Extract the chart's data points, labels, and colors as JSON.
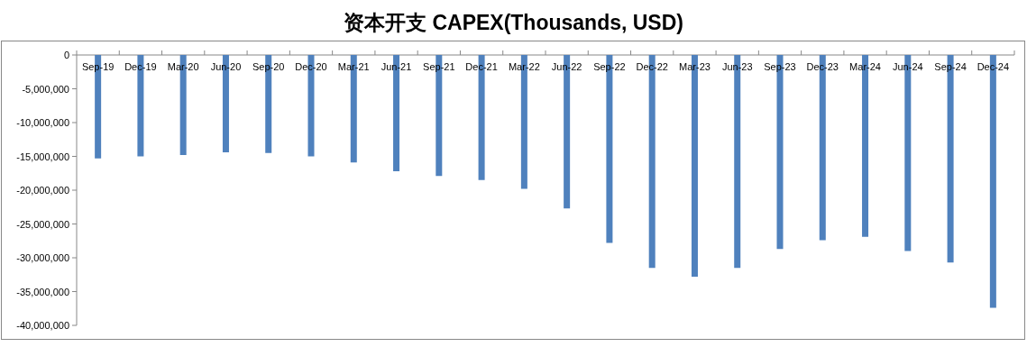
{
  "chart_data": {
    "type": "bar",
    "title": "资本开支 CAPEX(Thousands, USD)",
    "categories": [
      "Sep-19",
      "Dec-19",
      "Mar-20",
      "Jun-20",
      "Sep-20",
      "Dec-20",
      "Mar-21",
      "Jun-21",
      "Sep-21",
      "Dec-21",
      "Mar-22",
      "Jun-22",
      "Sep-22",
      "Dec-22",
      "Mar-23",
      "Jun-23",
      "Sep-23",
      "Dec-23",
      "Mar-24",
      "Jun-24",
      "Sep-24",
      "Dec-24"
    ],
    "values": [
      -15300000,
      -15000000,
      -14800000,
      -14400000,
      -14500000,
      -15000000,
      -15900000,
      -17200000,
      -17900000,
      -18500000,
      -19800000,
      -22700000,
      -27800000,
      -31500000,
      -32800000,
      -31500000,
      -28700000,
      -27400000,
      -26900000,
      -29000000,
      -30700000,
      -37400000
    ],
    "color": "#4f81bd",
    "ylim": [
      -40000000,
      0
    ],
    "yticks": [
      {
        "value": 0,
        "label": "0"
      },
      {
        "value": -5000000,
        "label": "-5,000,000"
      },
      {
        "value": -10000000,
        "label": "-10,000,000"
      },
      {
        "value": -15000000,
        "label": "-15,000,000"
      },
      {
        "value": -20000000,
        "label": "-20,000,000"
      },
      {
        "value": -25000000,
        "label": "-25,000,000"
      },
      {
        "value": -30000000,
        "label": "-30,000,000"
      },
      {
        "value": -35000000,
        "label": "-35,000,000"
      },
      {
        "value": -40000000,
        "label": "-40,000,000"
      }
    ],
    "grid": false
  }
}
